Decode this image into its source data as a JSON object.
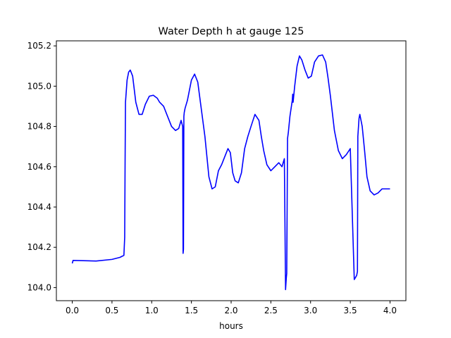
{
  "chart_data": {
    "type": "line",
    "title": "Water Depth h at gauge 125",
    "xlabel": "hours",
    "ylabel": "",
    "xlim": [
      -0.2,
      4.2
    ],
    "ylim": [
      103.935,
      105.225
    ],
    "grid": false,
    "x_ticks": [
      0.0,
      0.5,
      1.0,
      1.5,
      2.0,
      2.5,
      3.0,
      3.5,
      4.0
    ],
    "x_tick_labels": [
      "0.0",
      "0.5",
      "1.0",
      "1.5",
      "2.0",
      "2.5",
      "3.0",
      "3.5",
      "4.0"
    ],
    "y_ticks": [
      104.0,
      104.2,
      104.4,
      104.6,
      104.8,
      105.0,
      105.2
    ],
    "y_tick_labels": [
      "104.0",
      "104.2",
      "104.4",
      "104.6",
      "104.8",
      "105.0",
      "105.2"
    ],
    "series": [
      {
        "color": "#0000ff",
        "x": [
          0.0,
          0.01,
          0.3,
          0.5,
          0.6,
          0.65,
          0.66,
          0.665,
          0.67,
          0.69,
          0.71,
          0.73,
          0.76,
          0.8,
          0.84,
          0.88,
          0.92,
          0.97,
          1.02,
          1.07,
          1.1,
          1.15,
          1.2,
          1.25,
          1.3,
          1.34,
          1.37,
          1.39,
          1.395,
          1.4,
          1.405,
          1.41,
          1.42,
          1.45,
          1.5,
          1.54,
          1.58,
          1.62,
          1.67,
          1.72,
          1.76,
          1.8,
          1.84,
          1.88,
          1.92,
          1.96,
          1.99,
          2.02,
          2.05,
          2.09,
          2.13,
          2.17,
          2.21,
          2.25,
          2.3,
          2.35,
          2.38,
          2.41,
          2.45,
          2.5,
          2.55,
          2.6,
          2.64,
          2.67,
          2.685,
          2.69,
          2.695,
          2.7,
          2.71,
          2.72,
          2.74,
          2.77,
          2.775,
          2.78,
          2.8,
          2.83,
          2.86,
          2.89,
          2.93,
          2.97,
          3.01,
          3.05,
          3.1,
          3.15,
          3.19,
          3.22,
          3.25,
          3.3,
          3.35,
          3.4,
          3.45,
          3.5,
          3.55,
          3.58,
          3.59,
          3.595,
          3.6,
          3.61,
          3.62,
          3.65,
          3.68,
          3.71,
          3.75,
          3.8,
          3.85,
          3.9,
          3.95,
          4.0
        ],
        "y": [
          104.12,
          104.135,
          104.132,
          104.14,
          104.15,
          104.16,
          104.25,
          104.62,
          104.92,
          105.03,
          105.07,
          105.08,
          105.05,
          104.92,
          104.86,
          104.86,
          104.91,
          104.95,
          104.955,
          104.94,
          104.92,
          104.9,
          104.85,
          104.8,
          104.78,
          104.79,
          104.83,
          104.8,
          104.17,
          104.19,
          104.85,
          104.87,
          104.89,
          104.93,
          105.03,
          105.06,
          105.02,
          104.9,
          104.75,
          104.55,
          104.49,
          104.5,
          104.58,
          104.61,
          104.65,
          104.69,
          104.67,
          104.57,
          104.53,
          104.52,
          104.57,
          104.69,
          104.75,
          104.8,
          104.86,
          104.83,
          104.75,
          104.68,
          104.61,
          104.58,
          104.6,
          104.62,
          104.6,
          104.64,
          103.99,
          104.02,
          104.05,
          104.07,
          104.74,
          104.77,
          104.85,
          104.93,
          104.96,
          104.92,
          105.0,
          105.1,
          105.15,
          105.13,
          105.08,
          105.04,
          105.05,
          105.12,
          105.15,
          105.155,
          105.12,
          105.04,
          104.95,
          104.78,
          104.68,
          104.64,
          104.66,
          104.69,
          104.04,
          104.06,
          104.08,
          104.75,
          104.78,
          104.84,
          104.86,
          104.8,
          104.68,
          104.55,
          104.48,
          104.46,
          104.47,
          104.49,
          104.49,
          104.49
        ]
      }
    ]
  }
}
